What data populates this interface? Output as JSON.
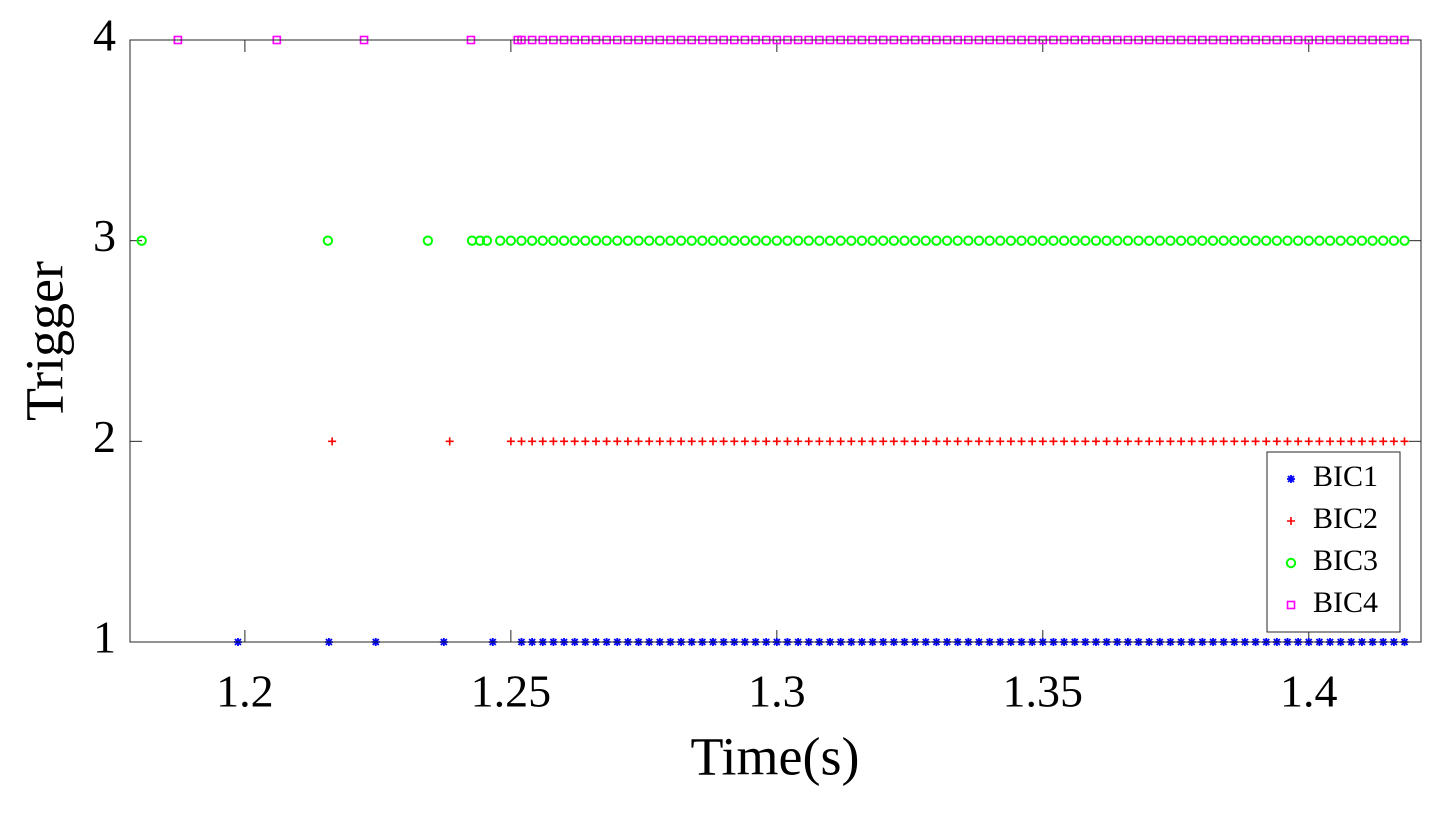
{
  "chart_data": {
    "type": "scatter",
    "x_label": "Time(s)",
    "y_label": "Trigger",
    "xlim": [
      1.1784,
      1.4211
    ],
    "ylim": [
      1,
      4
    ],
    "xticks": [
      1.2,
      1.25,
      1.3,
      1.35,
      1.4
    ],
    "yticks": [
      1,
      2,
      3,
      4
    ],
    "legend": "lower right",
    "grid": false,
    "series": [
      {
        "name": "BIC1",
        "color": "#0000ff",
        "marker": "asterisk",
        "x": [
          1.1987,
          1.2158,
          1.2246,
          1.2374,
          1.2466,
          1.252,
          1.254,
          1.256,
          1.258,
          1.26,
          1.262,
          1.264,
          1.266,
          1.268,
          1.27,
          1.272,
          1.274,
          1.276,
          1.278,
          1.28,
          1.282,
          1.284,
          1.286,
          1.288,
          1.29,
          1.292,
          1.294,
          1.296,
          1.298,
          1.3,
          1.302,
          1.304,
          1.306,
          1.308,
          1.31,
          1.312,
          1.314,
          1.316,
          1.318,
          1.32,
          1.322,
          1.324,
          1.326,
          1.328,
          1.33,
          1.332,
          1.334,
          1.336,
          1.338,
          1.34,
          1.342,
          1.344,
          1.346,
          1.348,
          1.35,
          1.352,
          1.354,
          1.356,
          1.358,
          1.36,
          1.362,
          1.364,
          1.366,
          1.368,
          1.37,
          1.372,
          1.374,
          1.376,
          1.378,
          1.38,
          1.382,
          1.384,
          1.386,
          1.388,
          1.39,
          1.392,
          1.394,
          1.396,
          1.398,
          1.4,
          1.402,
          1.404,
          1.406,
          1.408,
          1.41,
          1.412,
          1.414,
          1.416,
          1.418
        ],
        "values": [
          1,
          1,
          1,
          1,
          1,
          1,
          1,
          1,
          1,
          1,
          1,
          1,
          1,
          1,
          1,
          1,
          1,
          1,
          1,
          1,
          1,
          1,
          1,
          1,
          1,
          1,
          1,
          1,
          1,
          1,
          1,
          1,
          1,
          1,
          1,
          1,
          1,
          1,
          1,
          1,
          1,
          1,
          1,
          1,
          1,
          1,
          1,
          1,
          1,
          1,
          1,
          1,
          1,
          1,
          1,
          1,
          1,
          1,
          1,
          1,
          1,
          1,
          1,
          1,
          1,
          1,
          1,
          1,
          1,
          1,
          1,
          1,
          1,
          1,
          1,
          1,
          1,
          1,
          1,
          1,
          1,
          1,
          1,
          1,
          1,
          1,
          1,
          1,
          1
        ]
      },
      {
        "name": "BIC2",
        "color": "#ff0000",
        "marker": "plus",
        "x": [
          1.2164,
          1.2385,
          1.25,
          1.252,
          1.254,
          1.256,
          1.258,
          1.26,
          1.262,
          1.264,
          1.266,
          1.268,
          1.27,
          1.272,
          1.274,
          1.276,
          1.278,
          1.28,
          1.282,
          1.284,
          1.286,
          1.288,
          1.29,
          1.292,
          1.294,
          1.296,
          1.298,
          1.3,
          1.302,
          1.304,
          1.306,
          1.308,
          1.31,
          1.312,
          1.314,
          1.316,
          1.318,
          1.32,
          1.322,
          1.324,
          1.326,
          1.328,
          1.33,
          1.332,
          1.334,
          1.336,
          1.338,
          1.34,
          1.342,
          1.344,
          1.346,
          1.348,
          1.35,
          1.352,
          1.354,
          1.356,
          1.358,
          1.36,
          1.362,
          1.364,
          1.366,
          1.368,
          1.37,
          1.372,
          1.374,
          1.376,
          1.378,
          1.38,
          1.382,
          1.384,
          1.386,
          1.388,
          1.39,
          1.392,
          1.394,
          1.396,
          1.398,
          1.4,
          1.402,
          1.404,
          1.406,
          1.408,
          1.41,
          1.412,
          1.414,
          1.416,
          1.418
        ],
        "values": [
          2,
          2,
          2,
          2,
          2,
          2,
          2,
          2,
          2,
          2,
          2,
          2,
          2,
          2,
          2,
          2,
          2,
          2,
          2,
          2,
          2,
          2,
          2,
          2,
          2,
          2,
          2,
          2,
          2,
          2,
          2,
          2,
          2,
          2,
          2,
          2,
          2,
          2,
          2,
          2,
          2,
          2,
          2,
          2,
          2,
          2,
          2,
          2,
          2,
          2,
          2,
          2,
          2,
          2,
          2,
          2,
          2,
          2,
          2,
          2,
          2,
          2,
          2,
          2,
          2,
          2,
          2,
          2,
          2,
          2,
          2,
          2,
          2,
          2,
          2,
          2,
          2,
          2,
          2,
          2,
          2,
          2,
          2,
          2,
          2,
          2,
          2
        ]
      },
      {
        "name": "BIC3",
        "color": "#00ff00",
        "marker": "circle",
        "x": [
          1.1806,
          1.2156,
          1.2344,
          1.2427,
          1.2442,
          1.2455,
          1.248,
          1.25,
          1.252,
          1.254,
          1.256,
          1.258,
          1.26,
          1.262,
          1.264,
          1.266,
          1.268,
          1.27,
          1.272,
          1.274,
          1.276,
          1.278,
          1.28,
          1.282,
          1.284,
          1.286,
          1.288,
          1.29,
          1.292,
          1.294,
          1.296,
          1.298,
          1.3,
          1.302,
          1.304,
          1.306,
          1.308,
          1.31,
          1.312,
          1.314,
          1.316,
          1.318,
          1.32,
          1.322,
          1.324,
          1.326,
          1.328,
          1.33,
          1.332,
          1.334,
          1.336,
          1.338,
          1.34,
          1.342,
          1.344,
          1.346,
          1.348,
          1.35,
          1.352,
          1.354,
          1.356,
          1.358,
          1.36,
          1.362,
          1.364,
          1.366,
          1.368,
          1.37,
          1.372,
          1.374,
          1.376,
          1.378,
          1.38,
          1.382,
          1.384,
          1.386,
          1.388,
          1.39,
          1.392,
          1.394,
          1.396,
          1.398,
          1.4,
          1.402,
          1.404,
          1.406,
          1.408,
          1.41,
          1.412,
          1.414,
          1.416,
          1.418
        ],
        "values": [
          3,
          3,
          3,
          3,
          3,
          3,
          3,
          3,
          3,
          3,
          3,
          3,
          3,
          3,
          3,
          3,
          3,
          3,
          3,
          3,
          3,
          3,
          3,
          3,
          3,
          3,
          3,
          3,
          3,
          3,
          3,
          3,
          3,
          3,
          3,
          3,
          3,
          3,
          3,
          3,
          3,
          3,
          3,
          3,
          3,
          3,
          3,
          3,
          3,
          3,
          3,
          3,
          3,
          3,
          3,
          3,
          3,
          3,
          3,
          3,
          3,
          3,
          3,
          3,
          3,
          3,
          3,
          3,
          3,
          3,
          3,
          3,
          3,
          3,
          3,
          3,
          3,
          3,
          3,
          3,
          3,
          3,
          3,
          3,
          3,
          3,
          3,
          3,
          3,
          3,
          3,
          3
        ]
      },
      {
        "name": "BIC4",
        "color": "#ff00ff",
        "marker": "square",
        "x": [
          1.1874,
          1.206,
          1.2224,
          1.2425,
          1.2513,
          1.252,
          1.254,
          1.256,
          1.258,
          1.26,
          1.262,
          1.264,
          1.266,
          1.268,
          1.27,
          1.272,
          1.274,
          1.276,
          1.278,
          1.28,
          1.282,
          1.284,
          1.286,
          1.288,
          1.29,
          1.292,
          1.294,
          1.296,
          1.298,
          1.3,
          1.302,
          1.304,
          1.306,
          1.308,
          1.31,
          1.312,
          1.314,
          1.316,
          1.318,
          1.32,
          1.322,
          1.324,
          1.326,
          1.328,
          1.33,
          1.332,
          1.334,
          1.336,
          1.338,
          1.34,
          1.342,
          1.344,
          1.346,
          1.348,
          1.35,
          1.352,
          1.354,
          1.356,
          1.358,
          1.36,
          1.362,
          1.364,
          1.366,
          1.368,
          1.37,
          1.372,
          1.374,
          1.376,
          1.378,
          1.38,
          1.382,
          1.384,
          1.386,
          1.388,
          1.39,
          1.392,
          1.394,
          1.396,
          1.398,
          1.4,
          1.402,
          1.404,
          1.406,
          1.408,
          1.41,
          1.412,
          1.414,
          1.416,
          1.418
        ],
        "values": [
          4,
          4,
          4,
          4,
          4,
          4,
          4,
          4,
          4,
          4,
          4,
          4,
          4,
          4,
          4,
          4,
          4,
          4,
          4,
          4,
          4,
          4,
          4,
          4,
          4,
          4,
          4,
          4,
          4,
          4,
          4,
          4,
          4,
          4,
          4,
          4,
          4,
          4,
          4,
          4,
          4,
          4,
          4,
          4,
          4,
          4,
          4,
          4,
          4,
          4,
          4,
          4,
          4,
          4,
          4,
          4,
          4,
          4,
          4,
          4,
          4,
          4,
          4,
          4,
          4,
          4,
          4,
          4,
          4,
          4,
          4,
          4,
          4,
          4,
          4,
          4,
          4,
          4,
          4,
          4,
          4,
          4,
          4,
          4,
          4,
          4,
          4,
          4,
          4
        ]
      }
    ]
  }
}
